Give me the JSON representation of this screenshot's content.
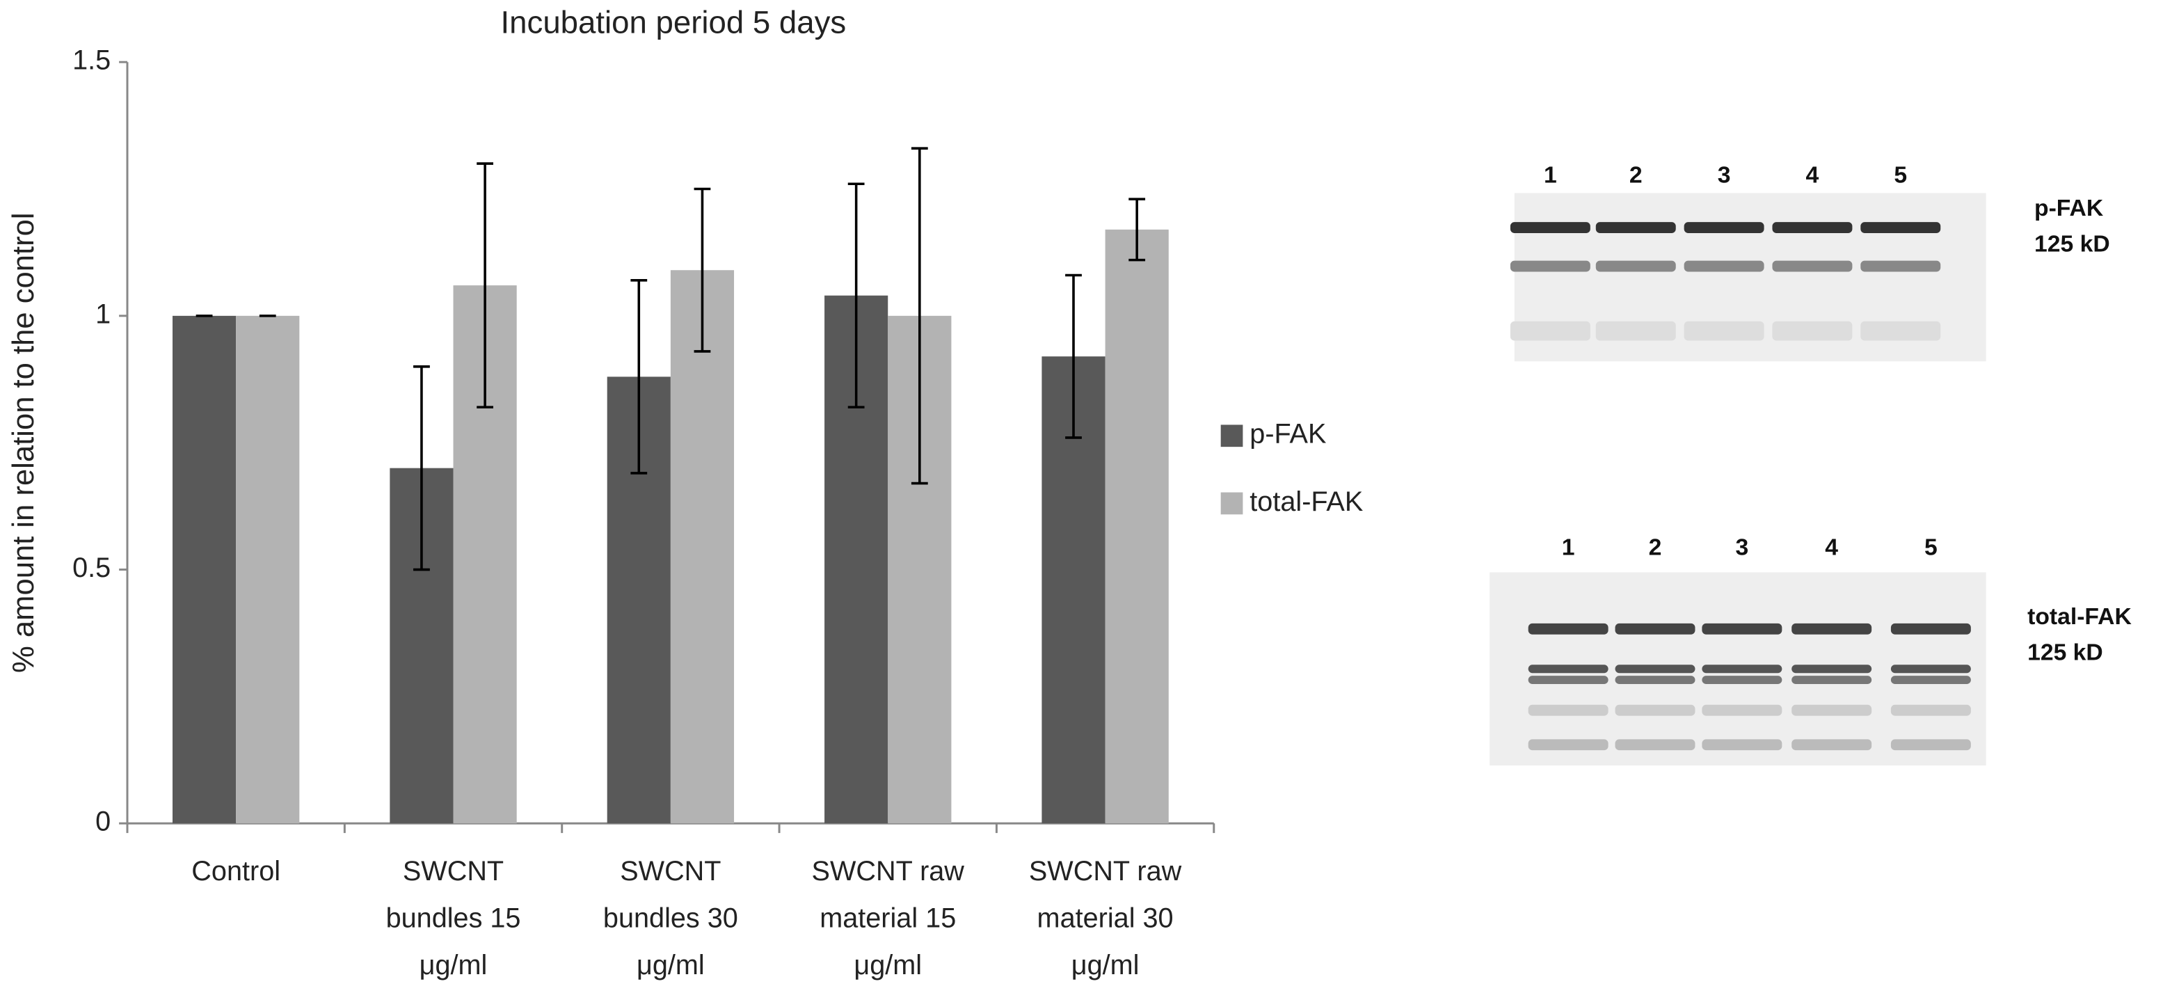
{
  "chart_data": {
    "type": "bar",
    "title": "Incubation period 5 days",
    "y_label": "% amount in relation to the control",
    "categories": [
      [
        "Control"
      ],
      [
        "SWCNT",
        "bundles 15",
        "μg/ml"
      ],
      [
        "SWCNT",
        "bundles 30",
        "μg/ml"
      ],
      [
        "SWCNT raw",
        "material 15",
        "μg/ml"
      ],
      [
        "SWCNT raw",
        "material 30",
        "μg/ml"
      ]
    ],
    "series": [
      {
        "name": "p-FAK",
        "color": "#595959",
        "values": [
          1,
          0.7,
          0.88,
          1.04,
          0.92
        ],
        "errors": [
          0,
          0.2,
          0.19,
          0.22,
          0.16
        ]
      },
      {
        "name": "total-FAK",
        "color": "#b3b3b3",
        "values": [
          1,
          1.06,
          1.09,
          1.0,
          1.17
        ],
        "errors": [
          0,
          0.24,
          0.16,
          0.33,
          0.06
        ]
      }
    ],
    "ylim": [
      0,
      1.5
    ],
    "yticks": [
      0,
      0.5,
      1,
      1.5
    ],
    "grid": false,
    "legend": "right"
  },
  "blots": [
    {
      "lanes": [
        "1",
        "2",
        "3",
        "4",
        "5"
      ],
      "label": "p-FAK",
      "size": "125 kD"
    },
    {
      "lanes": [
        "1",
        "2",
        "3",
        "4",
        "5"
      ],
      "label": "total-FAK",
      "size": "125 kD"
    }
  ]
}
